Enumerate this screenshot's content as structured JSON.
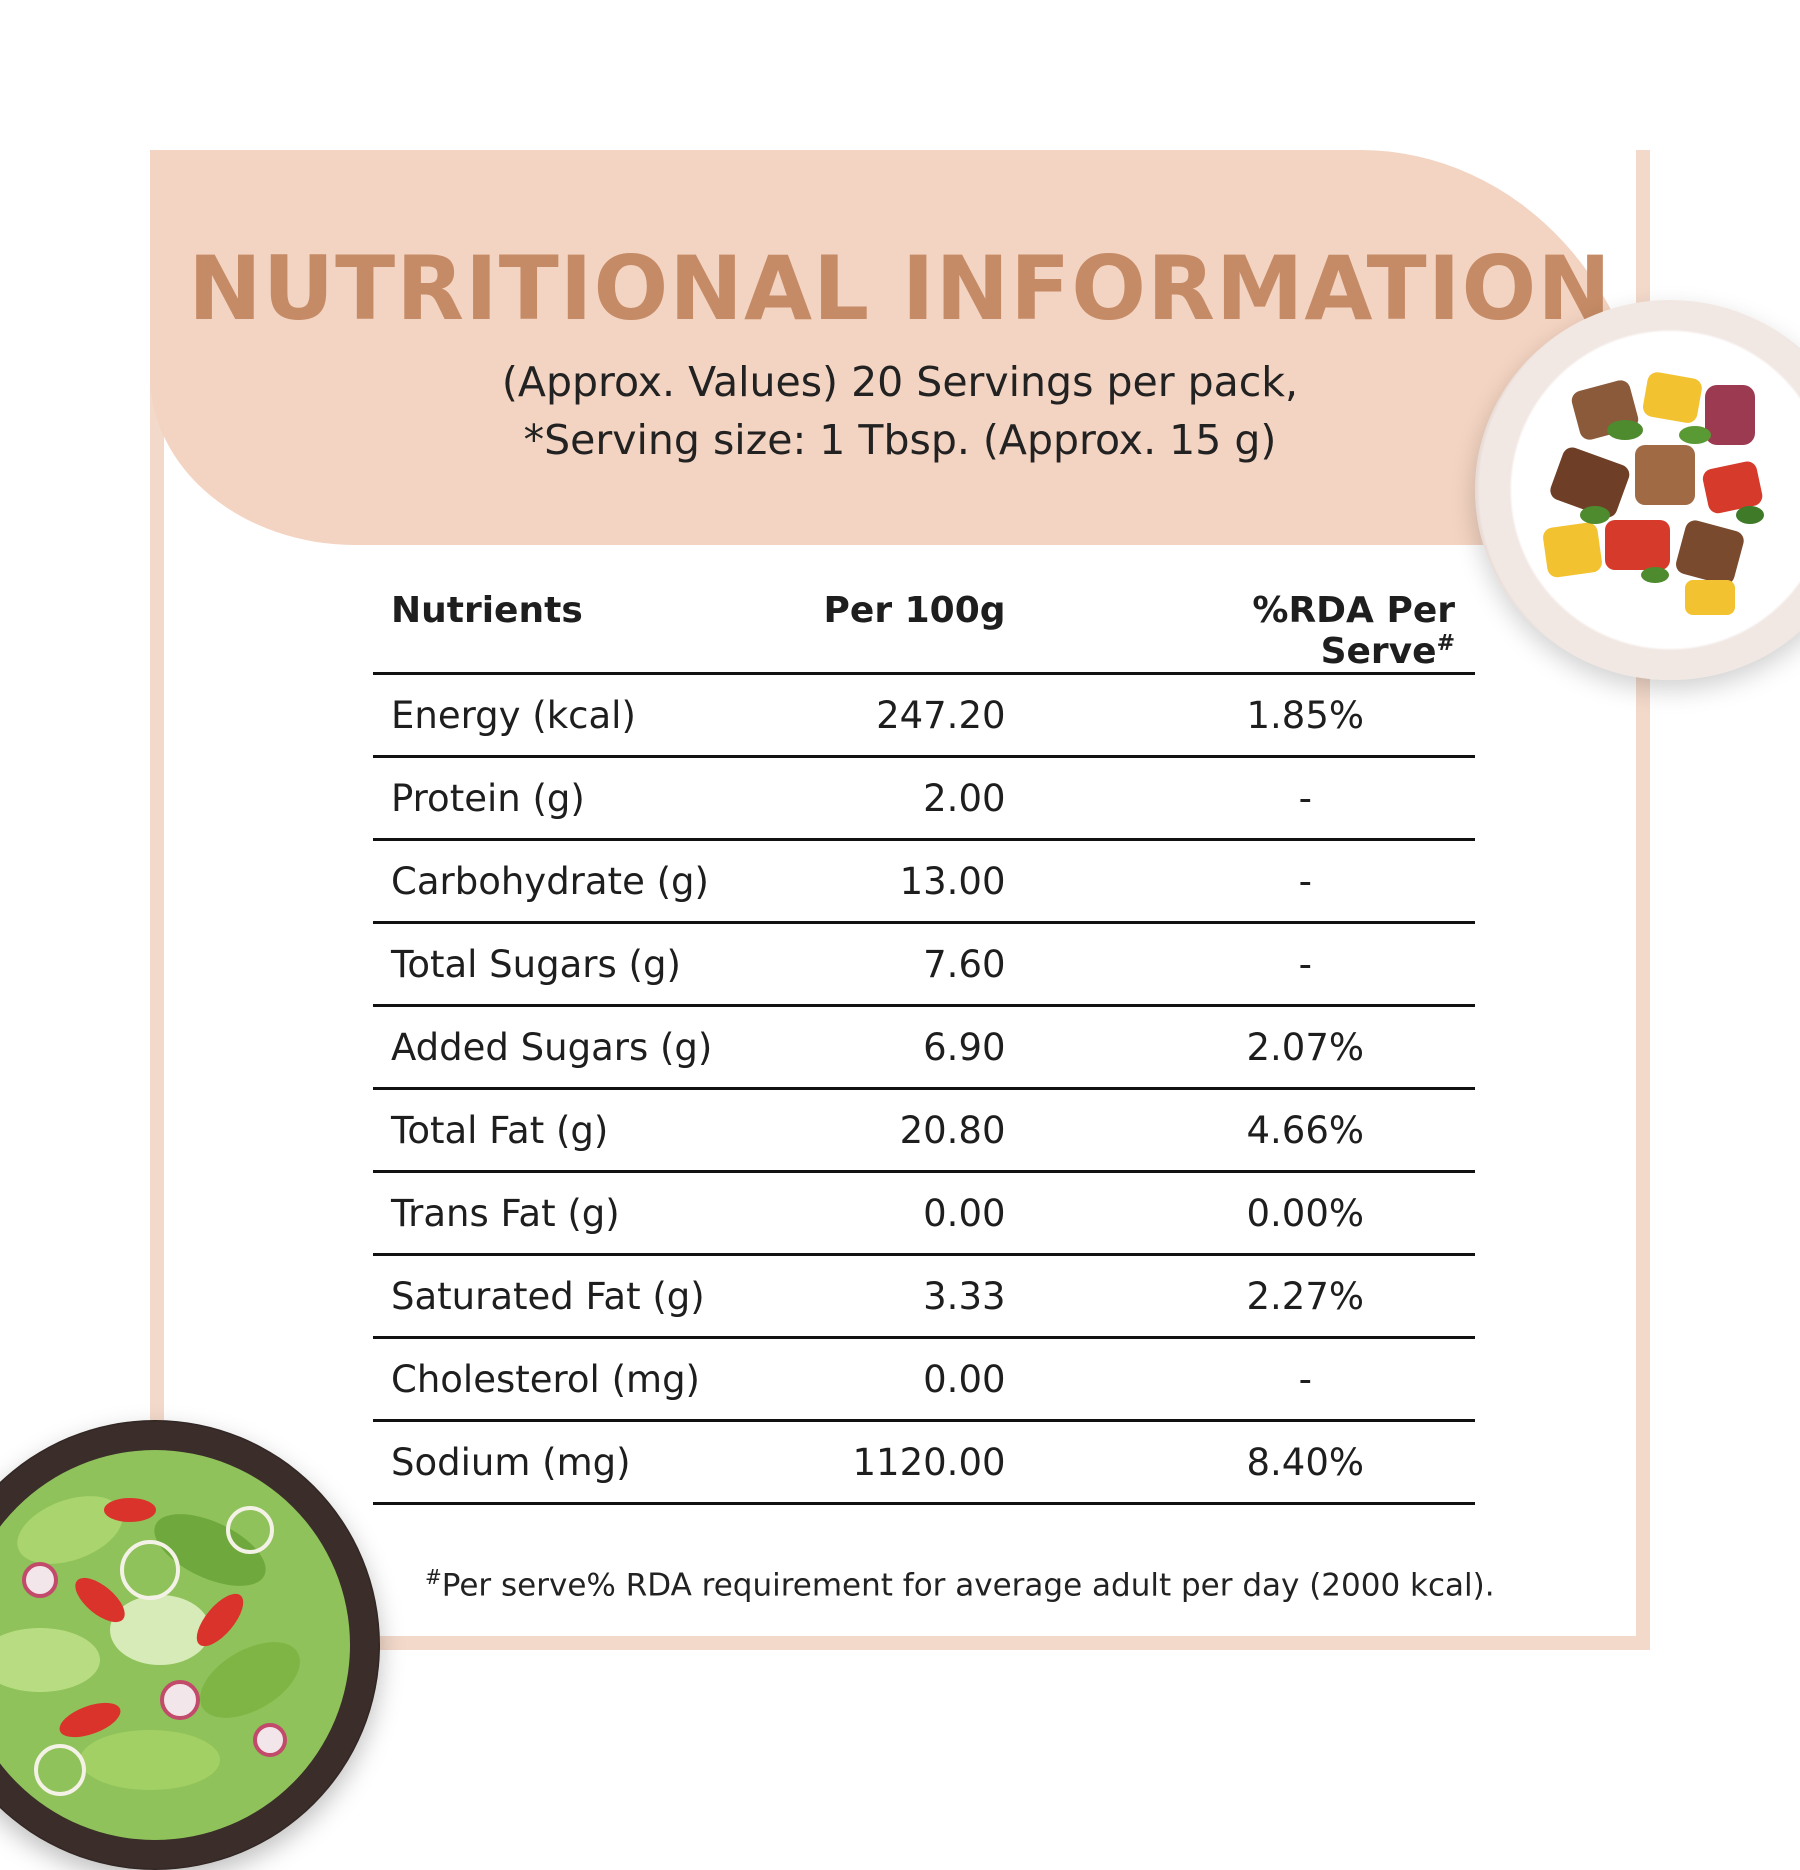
{
  "header": {
    "title": "NUTRITIONAL INFORMATION",
    "subtitle_line1": "(Approx. Values) 20 Servings per pack,",
    "subtitle_line2": "*Serving size: 1 Tbsp. (Approx. 15 g)"
  },
  "table": {
    "headers": {
      "nutrients": "Nutrients",
      "per100g": "Per 100g",
      "rda": "%RDA Per Serve",
      "rda_mark": "#"
    },
    "rows": [
      {
        "name": "Energy (kcal)",
        "per100g": "247.20",
        "rda": "1.85%"
      },
      {
        "name": "Protein (g)",
        "per100g": "2.00",
        "rda": "-"
      },
      {
        "name": "Carbohydrate (g)",
        "per100g": "13.00",
        "rda": "-"
      },
      {
        "name": "Total Sugars (g)",
        "per100g": "7.60",
        "rda": "-"
      },
      {
        "name": "Added Sugars (g)",
        "per100g": "6.90",
        "rda": "2.07%"
      },
      {
        "name": "Total Fat (g)",
        "per100g": "20.80",
        "rda": "4.66%"
      },
      {
        "name": "Trans Fat (g)",
        "per100g": "0.00",
        "rda": "0.00%"
      },
      {
        "name": "Saturated Fat (g)",
        "per100g": "3.33",
        "rda": "2.27%"
      },
      {
        "name": "Cholesterol (mg)",
        "per100g": "0.00",
        "rda": "-"
      },
      {
        "name": "Sodium (mg)",
        "per100g": "1120.00",
        "rda": "8.40%"
      }
    ]
  },
  "footnote": {
    "mark": "#",
    "text": "Per serve% RDA requirement for average adult per day (2000 kcal)."
  },
  "images": {
    "plate": "paneer-tikka-plate-image",
    "bowl": "green-salad-bowl-image"
  },
  "colors": {
    "accent": "#c58b66",
    "band": "#f3d3c1",
    "frame": "#f3d9ca"
  }
}
